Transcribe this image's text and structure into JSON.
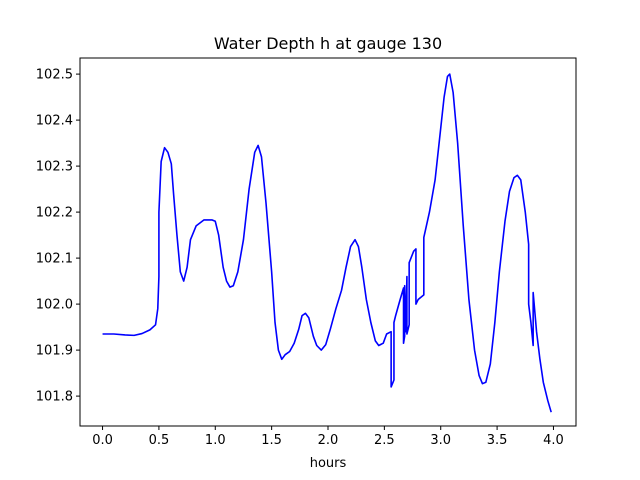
{
  "chart_data": {
    "type": "line",
    "title": "Water Depth h at gauge 130",
    "xlabel": "hours",
    "ylabel": "",
    "xlim": [
      -0.2,
      4.2
    ],
    "ylim": [
      101.735,
      102.535
    ],
    "xticks": [
      0.0,
      0.5,
      1.0,
      1.5,
      2.0,
      2.5,
      3.0,
      3.5,
      4.0
    ],
    "xtick_labels": [
      "0.0",
      "0.5",
      "1.0",
      "1.5",
      "2.0",
      "2.5",
      "3.0",
      "3.5",
      "4.0"
    ],
    "yticks": [
      101.8,
      101.9,
      102.0,
      102.1,
      102.2,
      102.3,
      102.4,
      102.5
    ],
    "ytick_labels": [
      "101.8",
      "101.9",
      "102.0",
      "102.1",
      "102.2",
      "102.3",
      "102.4",
      "102.5"
    ],
    "grid": false,
    "series": [
      {
        "color": "#0000ff",
        "points": [
          [
            0.0,
            101.935
          ],
          [
            0.1,
            101.935
          ],
          [
            0.2,
            101.933
          ],
          [
            0.28,
            101.932
          ],
          [
            0.35,
            101.936
          ],
          [
            0.42,
            101.944
          ],
          [
            0.47,
            101.955
          ],
          [
            0.49,
            101.99
          ],
          [
            0.5,
            102.06
          ],
          [
            0.5,
            102.2
          ],
          [
            0.52,
            102.31
          ],
          [
            0.55,
            102.34
          ],
          [
            0.58,
            102.33
          ],
          [
            0.61,
            102.305
          ],
          [
            0.63,
            102.24
          ],
          [
            0.66,
            102.15
          ],
          [
            0.69,
            102.07
          ],
          [
            0.72,
            102.05
          ],
          [
            0.75,
            102.08
          ],
          [
            0.78,
            102.14
          ],
          [
            0.83,
            102.17
          ],
          [
            0.9,
            102.183
          ],
          [
            0.97,
            102.183
          ],
          [
            1.0,
            102.18
          ],
          [
            1.03,
            102.15
          ],
          [
            1.07,
            102.08
          ],
          [
            1.1,
            102.05
          ],
          [
            1.13,
            102.037
          ],
          [
            1.16,
            102.04
          ],
          [
            1.2,
            102.07
          ],
          [
            1.25,
            102.14
          ],
          [
            1.3,
            102.25
          ],
          [
            1.35,
            102.33
          ],
          [
            1.38,
            102.345
          ],
          [
            1.41,
            102.32
          ],
          [
            1.45,
            102.22
          ],
          [
            1.5,
            102.07
          ],
          [
            1.53,
            101.96
          ],
          [
            1.56,
            101.9
          ],
          [
            1.59,
            101.88
          ],
          [
            1.62,
            101.89
          ],
          [
            1.66,
            101.897
          ],
          [
            1.7,
            101.915
          ],
          [
            1.74,
            101.945
          ],
          [
            1.77,
            101.975
          ],
          [
            1.8,
            101.98
          ],
          [
            1.83,
            101.97
          ],
          [
            1.87,
            101.93
          ],
          [
            1.9,
            101.91
          ],
          [
            1.94,
            101.9
          ],
          [
            1.98,
            101.912
          ],
          [
            2.02,
            101.945
          ],
          [
            2.07,
            101.99
          ],
          [
            2.12,
            102.03
          ],
          [
            2.16,
            102.08
          ],
          [
            2.2,
            102.125
          ],
          [
            2.24,
            102.14
          ],
          [
            2.27,
            102.125
          ],
          [
            2.3,
            102.08
          ],
          [
            2.34,
            102.01
          ],
          [
            2.38,
            101.96
          ],
          [
            2.42,
            101.92
          ],
          [
            2.45,
            101.91
          ],
          [
            2.49,
            101.915
          ],
          [
            2.52,
            101.935
          ],
          [
            2.56,
            101.94
          ],
          [
            2.56,
            101.82
          ],
          [
            2.585,
            101.835
          ],
          [
            2.585,
            101.96
          ],
          [
            2.6,
            101.975
          ],
          [
            2.64,
            102.01
          ],
          [
            2.67,
            102.035
          ],
          [
            2.67,
            101.915
          ],
          [
            2.68,
            101.93
          ],
          [
            2.68,
            102.04
          ],
          [
            2.69,
            101.94
          ],
          [
            2.7,
            102.06
          ],
          [
            2.7,
            101.935
          ],
          [
            2.72,
            101.955
          ],
          [
            2.72,
            102.09
          ],
          [
            2.76,
            102.115
          ],
          [
            2.78,
            102.12
          ],
          [
            2.78,
            102.0
          ],
          [
            2.8,
            102.01
          ],
          [
            2.85,
            102.02
          ],
          [
            2.85,
            102.145
          ],
          [
            2.9,
            102.2
          ],
          [
            2.95,
            102.27
          ],
          [
            2.99,
            102.36
          ],
          [
            3.03,
            102.45
          ],
          [
            3.06,
            102.495
          ],
          [
            3.08,
            102.5
          ],
          [
            3.11,
            102.46
          ],
          [
            3.15,
            102.35
          ],
          [
            3.2,
            102.17
          ],
          [
            3.25,
            102.01
          ],
          [
            3.3,
            101.9
          ],
          [
            3.34,
            101.845
          ],
          [
            3.37,
            101.827
          ],
          [
            3.4,
            101.83
          ],
          [
            3.44,
            101.87
          ],
          [
            3.48,
            101.96
          ],
          [
            3.52,
            102.07
          ],
          [
            3.57,
            102.18
          ],
          [
            3.61,
            102.245
          ],
          [
            3.65,
            102.275
          ],
          [
            3.68,
            102.28
          ],
          [
            3.71,
            102.27
          ],
          [
            3.75,
            102.2
          ],
          [
            3.78,
            102.13
          ],
          [
            3.78,
            102.0
          ],
          [
            3.8,
            101.96
          ],
          [
            3.82,
            101.91
          ],
          [
            3.82,
            102.025
          ],
          [
            3.85,
            101.94
          ],
          [
            3.88,
            101.88
          ],
          [
            3.91,
            101.83
          ],
          [
            3.95,
            101.79
          ],
          [
            3.98,
            101.765
          ]
        ]
      }
    ]
  }
}
